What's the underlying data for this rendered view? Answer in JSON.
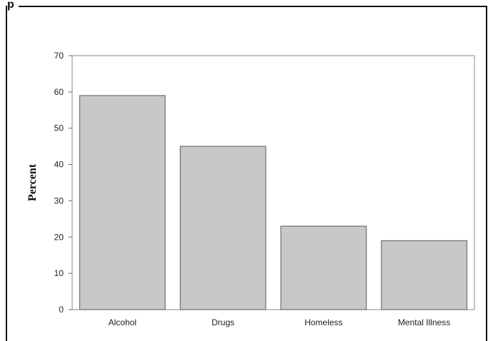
{
  "header": {
    "title_fragment": "p"
  },
  "chart_data": {
    "type": "bar",
    "categories": [
      "Alcohol",
      "Drugs",
      "Homeless",
      "Mental Illness"
    ],
    "values": [
      59,
      45,
      23,
      19
    ],
    "title": "",
    "xlabel": "",
    "ylabel": "Percent",
    "ylim": [
      0,
      70
    ],
    "yticks": [
      0,
      10,
      20,
      30,
      40,
      50,
      60,
      70
    ],
    "grid": false,
    "bar_color": "#c8c8c8",
    "bar_edge_color": "#6f6f6f"
  }
}
